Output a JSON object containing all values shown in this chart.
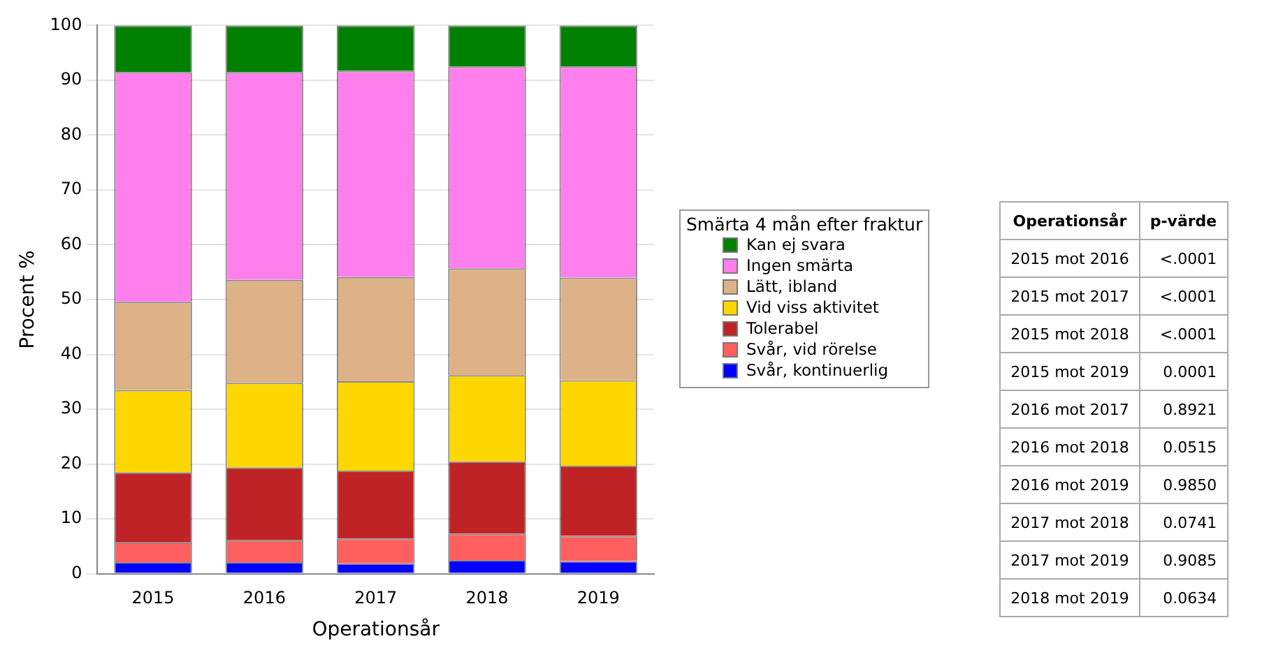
{
  "chart_data": [
    {
      "type": "bar",
      "stacked": true,
      "xlabel": "Operationsår",
      "ylabel": "Procent %",
      "legend_title": "Smärta 4 mån efter fraktur",
      "legend": "right",
      "grid": "y",
      "categories": [
        "2015",
        "2016",
        "2017",
        "2018",
        "2019"
      ],
      "ylim": [
        0,
        100
      ],
      "yticks": [
        0,
        10,
        20,
        30,
        40,
        50,
        60,
        70,
        80,
        90,
        100
      ],
      "series": [
        {
          "name": "Svår, kontinuerlig",
          "color": "#0000ff",
          "values": [
            2.1,
            2.1,
            1.9,
            2.5,
            2.3
          ]
        },
        {
          "name": "Svår, vid rörelse",
          "color": "#ff5f5f",
          "values": [
            3.7,
            4.0,
            4.5,
            4.8,
            4.6
          ]
        },
        {
          "name": "Tolerabel",
          "color": "#c02325",
          "values": [
            12.7,
            13.3,
            12.4,
            13.2,
            12.8
          ]
        },
        {
          "name": "Vid viss aktivitet",
          "color": "#ffd700",
          "values": [
            15.0,
            15.4,
            16.3,
            15.7,
            15.6
          ]
        },
        {
          "name": "Lätt, ibland",
          "color": "#deb287",
          "values": [
            16.1,
            18.8,
            19.0,
            19.5,
            18.7
          ]
        },
        {
          "name": "Ingen smärta",
          "color": "#ff80ec",
          "values": [
            41.9,
            37.9,
            37.6,
            36.8,
            38.5
          ]
        },
        {
          "name": "Kan ej svara",
          "color": "#008000",
          "values": [
            8.5,
            8.5,
            8.3,
            7.5,
            7.5
          ]
        }
      ]
    },
    {
      "type": "other",
      "annotations": [
        "Operationsår",
        "p-värde",
        "2015 mot 2016",
        "<.0001",
        "2015 mot 2017",
        "<.0001",
        "2015 mot 2018",
        "<.0001",
        "2015 mot 2019",
        "0.0001",
        "2016 mot 2017",
        "0.8921",
        "2016 mot 2018",
        "0.0515",
        "2016 mot 2019",
        "0.9850",
        "2017 mot 2018",
        "0.0741",
        "2017 mot 2019",
        "0.9085",
        "2018 mot 2019",
        "0.0634"
      ]
    }
  ]
}
